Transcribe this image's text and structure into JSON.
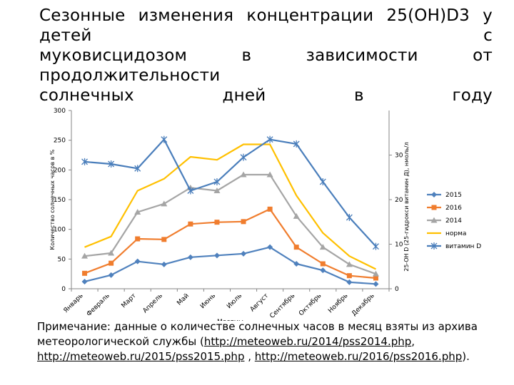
{
  "title_lines": [
    "Сезонные изменения концентрации 25(ОН)D3 у детей с",
    "муковисцидозом в зависимости от продолжительности",
    "солнечных дней в году"
  ],
  "note": {
    "text_before": "Примечание: данные о количестве солнечных часов в месяц взяты из архива метеорологической службы (",
    "link1": "http://meteoweb.ru/2014/pss2014.php",
    "sep1": ", ",
    "link2": "http://meteoweb.ru/2015/pss2015.php",
    "sep2": " , ",
    "link3": "http://meteoweb.ru/2016/pss2016.php",
    "text_after": ")."
  },
  "chart_data": {
    "type": "line",
    "xlabel": "Месяцы",
    "ylabel": "Количество солнечных часов в %",
    "y2label": "25-ОН D (25-гидрокси витамин Д), нмоль/л",
    "ylim": [
      0,
      300
    ],
    "yticks": [
      0,
      50,
      100,
      150,
      200,
      250,
      300
    ],
    "y2lim": [
      0,
      40
    ],
    "y2ticks": [
      0,
      10,
      20,
      30
    ],
    "categories": [
      "Январь",
      "Февраль",
      "Март",
      "Апрель",
      "Май",
      "Июнь",
      "Июль",
      "Август",
      "Сентябрь",
      "Октябрь",
      "Ноябрь",
      "Декабрь"
    ],
    "legend_position": "right",
    "series": [
      {
        "name": "2015",
        "axis": "left",
        "color": "#4f81bd",
        "marker": "diamond",
        "values": [
          12,
          23,
          46,
          41,
          53,
          56,
          59,
          70,
          42,
          31,
          11,
          8
        ]
      },
      {
        "name": "2016",
        "axis": "left",
        "color": "#f07d2e",
        "marker": "square",
        "values": [
          26,
          43,
          84,
          83,
          109,
          112,
          113,
          134,
          70,
          42,
          22,
          18
        ]
      },
      {
        "name": "2014",
        "axis": "left",
        "color": "#a5a5a5",
        "marker": "triangle",
        "values": [
          55,
          60,
          129,
          143,
          170,
          165,
          192,
          192,
          122,
          70,
          41,
          25
        ]
      },
      {
        "name": "норма",
        "axis": "left",
        "color": "#ffc000",
        "marker": "none",
        "values": [
          70,
          88,
          165,
          185,
          222,
          217,
          243,
          243,
          157,
          94,
          55,
          33
        ]
      },
      {
        "name": "витамин D",
        "axis": "right",
        "color": "#4a7ebb",
        "marker": "star",
        "values": [
          28.5,
          28,
          27,
          33.5,
          22,
          24,
          29.5,
          33.5,
          32.5,
          24,
          16,
          9.5
        ]
      }
    ]
  }
}
